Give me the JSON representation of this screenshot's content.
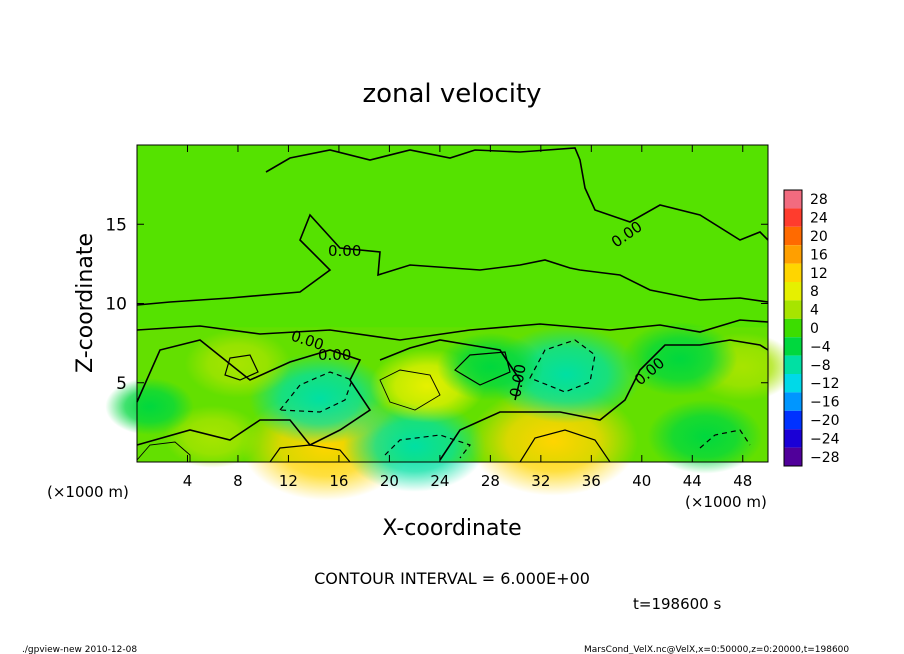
{
  "chart_data": {
    "type": "heatmap",
    "title": "zonal velocity",
    "xlabel": "X-coordinate",
    "ylabel": "Z-coordinate",
    "x_unit": "(×1000 m)",
    "y_unit": "(×1000 m)",
    "xlim": [
      0,
      50
    ],
    "ylim": [
      0,
      20
    ],
    "x_ticks": [
      "4",
      "8",
      "12",
      "16",
      "20",
      "24",
      "28",
      "32",
      "36",
      "40",
      "44",
      "48"
    ],
    "y_ticks": [
      "5",
      "10",
      "15"
    ],
    "colorbar": {
      "levels": [
        "28",
        "24",
        "20",
        "16",
        "12",
        "8",
        "4",
        "0",
        "−4",
        "−8",
        "−12",
        "−16",
        "−20",
        "−24",
        "−28"
      ],
      "colors": [
        "#f26b7f",
        "#ff3c2d",
        "#ff6a00",
        "#ff9f00",
        "#ffd500",
        "#e6f000",
        "#a7e400",
        "#3cdd00",
        "#00d83e",
        "#00e0a3",
        "#00d9e8",
        "#0096ff",
        "#0032ff",
        "#1a00d6",
        "#50009a"
      ]
    },
    "contour_label": "0.00",
    "contour_interval": "CONTOUR INTERVAL = 6.000E+00",
    "time_label": "t=198600 s",
    "features": [
      {
        "kind": "jet",
        "x": 15,
        "z": 1.0,
        "u": 12
      },
      {
        "kind": "jet",
        "x": 22,
        "z": 1.0,
        "u": -9
      },
      {
        "kind": "jet",
        "x": 33,
        "z": 1.3,
        "u": 12
      },
      {
        "kind": "jet",
        "x": 6,
        "z": 1.6,
        "u": 4
      },
      {
        "kind": "jet",
        "x": 45,
        "z": 1.6,
        "u": -6
      },
      {
        "kind": "jet",
        "x": 1,
        "z": 3.5,
        "u": -3
      },
      {
        "kind": "jet",
        "x": 14.5,
        "z": 4.0,
        "u": -9
      },
      {
        "kind": "jet",
        "x": 23,
        "z": 4.8,
        "u": 6
      },
      {
        "kind": "jet",
        "x": 34,
        "z": 5.5,
        "u": -10
      },
      {
        "kind": "jet",
        "x": 48,
        "z": 6.0,
        "u": 5
      },
      {
        "kind": "jet",
        "x": 8,
        "z": 6.2,
        "u": 5
      },
      {
        "kind": "jet",
        "x": 28,
        "z": 6.0,
        "u": -5
      },
      {
        "kind": "jet",
        "x": 43,
        "z": 6.5,
        "u": -6
      }
    ]
  },
  "footer": {
    "left": "./gpview-new   2010-12-08",
    "right": "MarsCond_VelX.nc@VelX,x=0:50000,z=0:20000,t=198600"
  }
}
